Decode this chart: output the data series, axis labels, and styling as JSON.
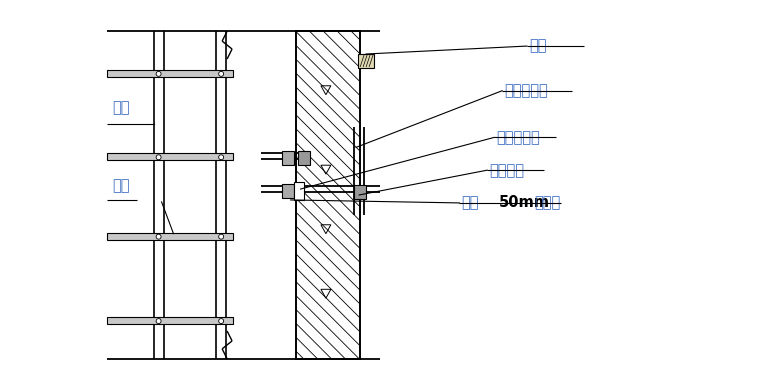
{
  "bg_color": "#ffffff",
  "line_color": "#000000",
  "label_color": "#4472c4",
  "figsize": [
    7.6,
    3.85
  ],
  "dpi": 100,
  "labels": {
    "ligan": "立杆",
    "hengan": "横杆",
    "dimu": "垫木",
    "zxdgg": "竖向短钓管",
    "spxdgg": "水平短钓管",
    "zjkj": "直角扎件",
    "cyq_prefix": "预留",
    "cyq_bold": "50mm",
    "cyq_suffix": "穿墙气"
  }
}
